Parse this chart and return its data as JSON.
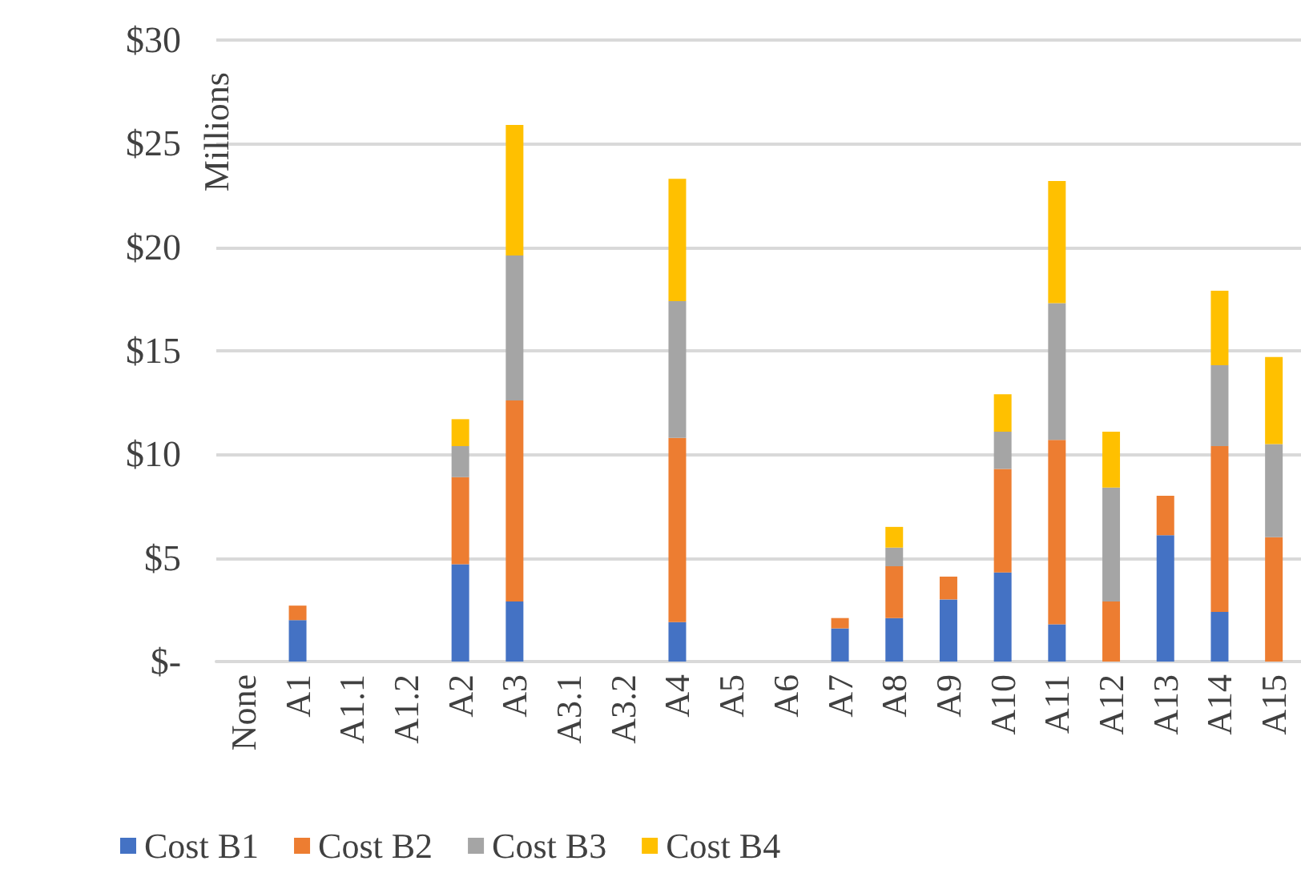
{
  "chart_data": {
    "type": "bar",
    "stacked": true,
    "ylabel": "Millions",
    "categories": [
      "None",
      "A1",
      "A1.1",
      "A1.2",
      "A2",
      "A3",
      "A3.1",
      "A3.2",
      "A4",
      "A5",
      "A6",
      "A7",
      "A8",
      "A9",
      "A10",
      "A11",
      "A12",
      "A13",
      "A14",
      "A15"
    ],
    "series": [
      {
        "name": "Cost B1",
        "color": "#4472c4",
        "values": [
          0,
          2.0,
          0,
          0,
          4.7,
          2.9,
          0,
          0,
          1.9,
          0,
          0,
          1.6,
          2.1,
          3.0,
          4.3,
          1.8,
          0,
          6.1,
          2.4,
          0
        ]
      },
      {
        "name": "Cost B2",
        "color": "#ed7d31",
        "values": [
          0,
          0.7,
          0,
          0,
          4.2,
          9.7,
          0,
          0,
          8.9,
          0,
          0,
          0.5,
          2.5,
          1.1,
          5.0,
          8.9,
          2.9,
          1.9,
          8.0,
          6.0
        ]
      },
      {
        "name": "Cost B3",
        "color": "#a5a5a5",
        "values": [
          0,
          0,
          0,
          0,
          1.5,
          7.0,
          0,
          0,
          6.6,
          0,
          0,
          0,
          0.9,
          0,
          1.8,
          6.6,
          5.5,
          0,
          3.9,
          4.5
        ]
      },
      {
        "name": "Cost B4",
        "color": "#ffc000",
        "values": [
          0,
          0,
          0,
          0,
          1.3,
          6.3,
          0,
          0,
          5.9,
          0,
          0,
          0,
          1.0,
          0,
          1.8,
          5.9,
          2.7,
          0,
          3.6,
          4.2
        ]
      }
    ],
    "ylim": [
      0,
      30
    ],
    "yticks": [
      {
        "value": 0,
        "label": "$-"
      },
      {
        "value": 5,
        "label": "$5"
      },
      {
        "value": 10,
        "label": "$10"
      },
      {
        "value": 15,
        "label": "$15"
      },
      {
        "value": 20,
        "label": "$20"
      },
      {
        "value": 25,
        "label": "$25"
      },
      {
        "value": 30,
        "label": "$30"
      }
    ],
    "grid": "y",
    "legend": "bottom"
  }
}
